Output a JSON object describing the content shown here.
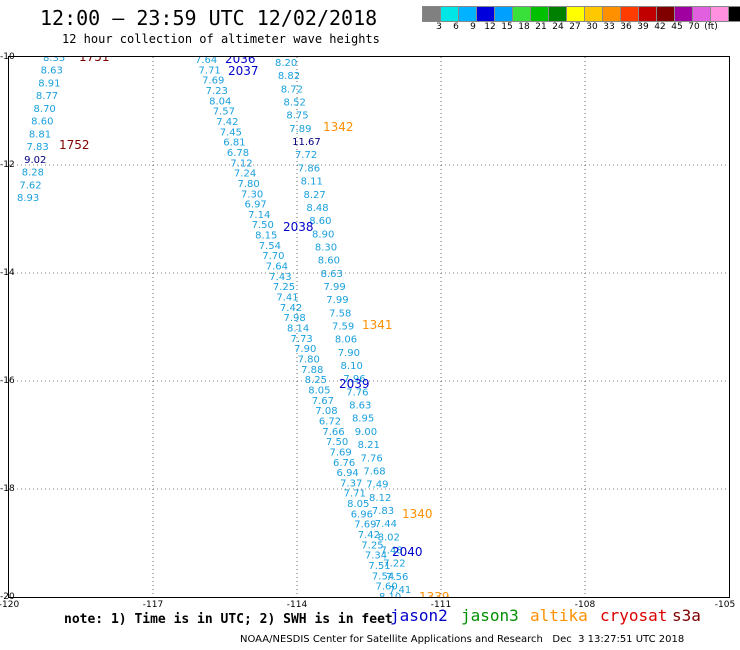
{
  "header": {
    "title": "12:00 — 23:59 UTC 12/02/2018",
    "subtitle": "12 hour collection of altimeter wave heights"
  },
  "colorbar": {
    "colors": [
      "#808080",
      "#00e5e5",
      "#00b2ff",
      "#0000dd",
      "#00a0ff",
      "#3ae03a",
      "#00c000",
      "#008000",
      "#ffff00",
      "#ffc800",
      "#ff9000",
      "#ff3c00",
      "#c00000",
      "#800000",
      "#a000a0",
      "#e060e0",
      "#ff90e0",
      "#000000"
    ],
    "labels": [
      "3",
      "6",
      "9",
      "12",
      "15",
      "18",
      "21",
      "24",
      "27",
      "30",
      "33",
      "36",
      "39",
      "42",
      "45",
      "70",
      "(ft)"
    ]
  },
  "map": {
    "lat_ticks": [
      "-10",
      "-12",
      "-14",
      "-16",
      "-18",
      "-20"
    ],
    "lon_ticks": [
      "-120",
      "-117",
      "-114",
      "-111",
      "-108",
      "-105"
    ],
    "time_labels": [
      {
        "text": "1751",
        "color": "#800000"
      },
      {
        "text": "1752",
        "color": "#800000"
      },
      {
        "text": "2036",
        "color": "#0000cc"
      },
      {
        "text": "2037",
        "color": "#0000cc"
      },
      {
        "text": "2038",
        "color": "#0000cc"
      },
      {
        "text": "2039",
        "color": "#0000cc"
      },
      {
        "text": "2040",
        "color": "#0000cc"
      },
      {
        "text": "1342",
        "color": "#ff9000"
      },
      {
        "text": "1341",
        "color": "#ff9000"
      },
      {
        "text": "1340",
        "color": "#ff9000"
      },
      {
        "text": "1339",
        "color": "#ff9000"
      }
    ],
    "track_cryosat": [
      "8.35",
      "8.63",
      "8.91",
      "8.77",
      "8.70",
      "8.60",
      "8.81",
      "7.83",
      "9.02",
      "8.28",
      "7.62",
      "8.93"
    ],
    "track_jason2": [
      "7.64",
      "7.71",
      "7.69",
      "7.23",
      "8.04",
      "7.57",
      "7.42",
      "7.45",
      "6.81",
      "6.78",
      "7.12",
      "7.24",
      "7.80",
      "7.30",
      "6.97",
      "7.14",
      "7.50",
      "8.15",
      "7.54",
      "7.70",
      "7.64",
      "7.43",
      "7.25",
      "7.41",
      "7.42",
      "7.98",
      "8.14",
      "7.73",
      "7.90",
      "7.80",
      "7.88",
      "8.25",
      "8.05",
      "7.67",
      "7.08",
      "6.72",
      "7.66",
      "7.50",
      "7.69",
      "6.76",
      "6.94",
      "7.37",
      "7.71",
      "8.05",
      "6.96",
      "7.69",
      "7.42",
      "7.25",
      "7.34",
      "7.51",
      "7.54",
      "7.60",
      "8.10"
    ],
    "track_altika": [
      "8.20",
      "8.82",
      "8.72",
      "8.52",
      "8.75",
      "7.89",
      "11.67",
      "7.72",
      "7.86",
      "8.11",
      "8.27",
      "8.48",
      "8.60",
      "8.90",
      "8.30",
      "8.60",
      "8.63",
      "7.99",
      "7.99",
      "7.58",
      "7.59",
      "8.06",
      "7.90",
      "8.10",
      "7.96",
      "7.76",
      "8.63",
      "8.95",
      "9.00",
      "8.21",
      "7.76",
      "7.68",
      "7.49",
      "8.12",
      "7.83",
      "7.44",
      "8.02",
      "7.48",
      "7.22",
      "7.56",
      "7.41"
    ]
  },
  "footer": {
    "note": "note: 1) Time is in UTC; 2) SWH is in feet",
    "sats": [
      {
        "name": "jason2",
        "color": "#0000cc"
      },
      {
        "name": "jason3",
        "color": "#009000"
      },
      {
        "name": "altika",
        "color": "#ff9000"
      },
      {
        "name": "cryosat",
        "color": "#dd0000"
      },
      {
        "name": "s3a",
        "color": "#800000"
      }
    ],
    "credit": "NOAA/NESDIS Center for Satellite Applications and Research   Dec  3 13:27:51 UTC 2018"
  }
}
